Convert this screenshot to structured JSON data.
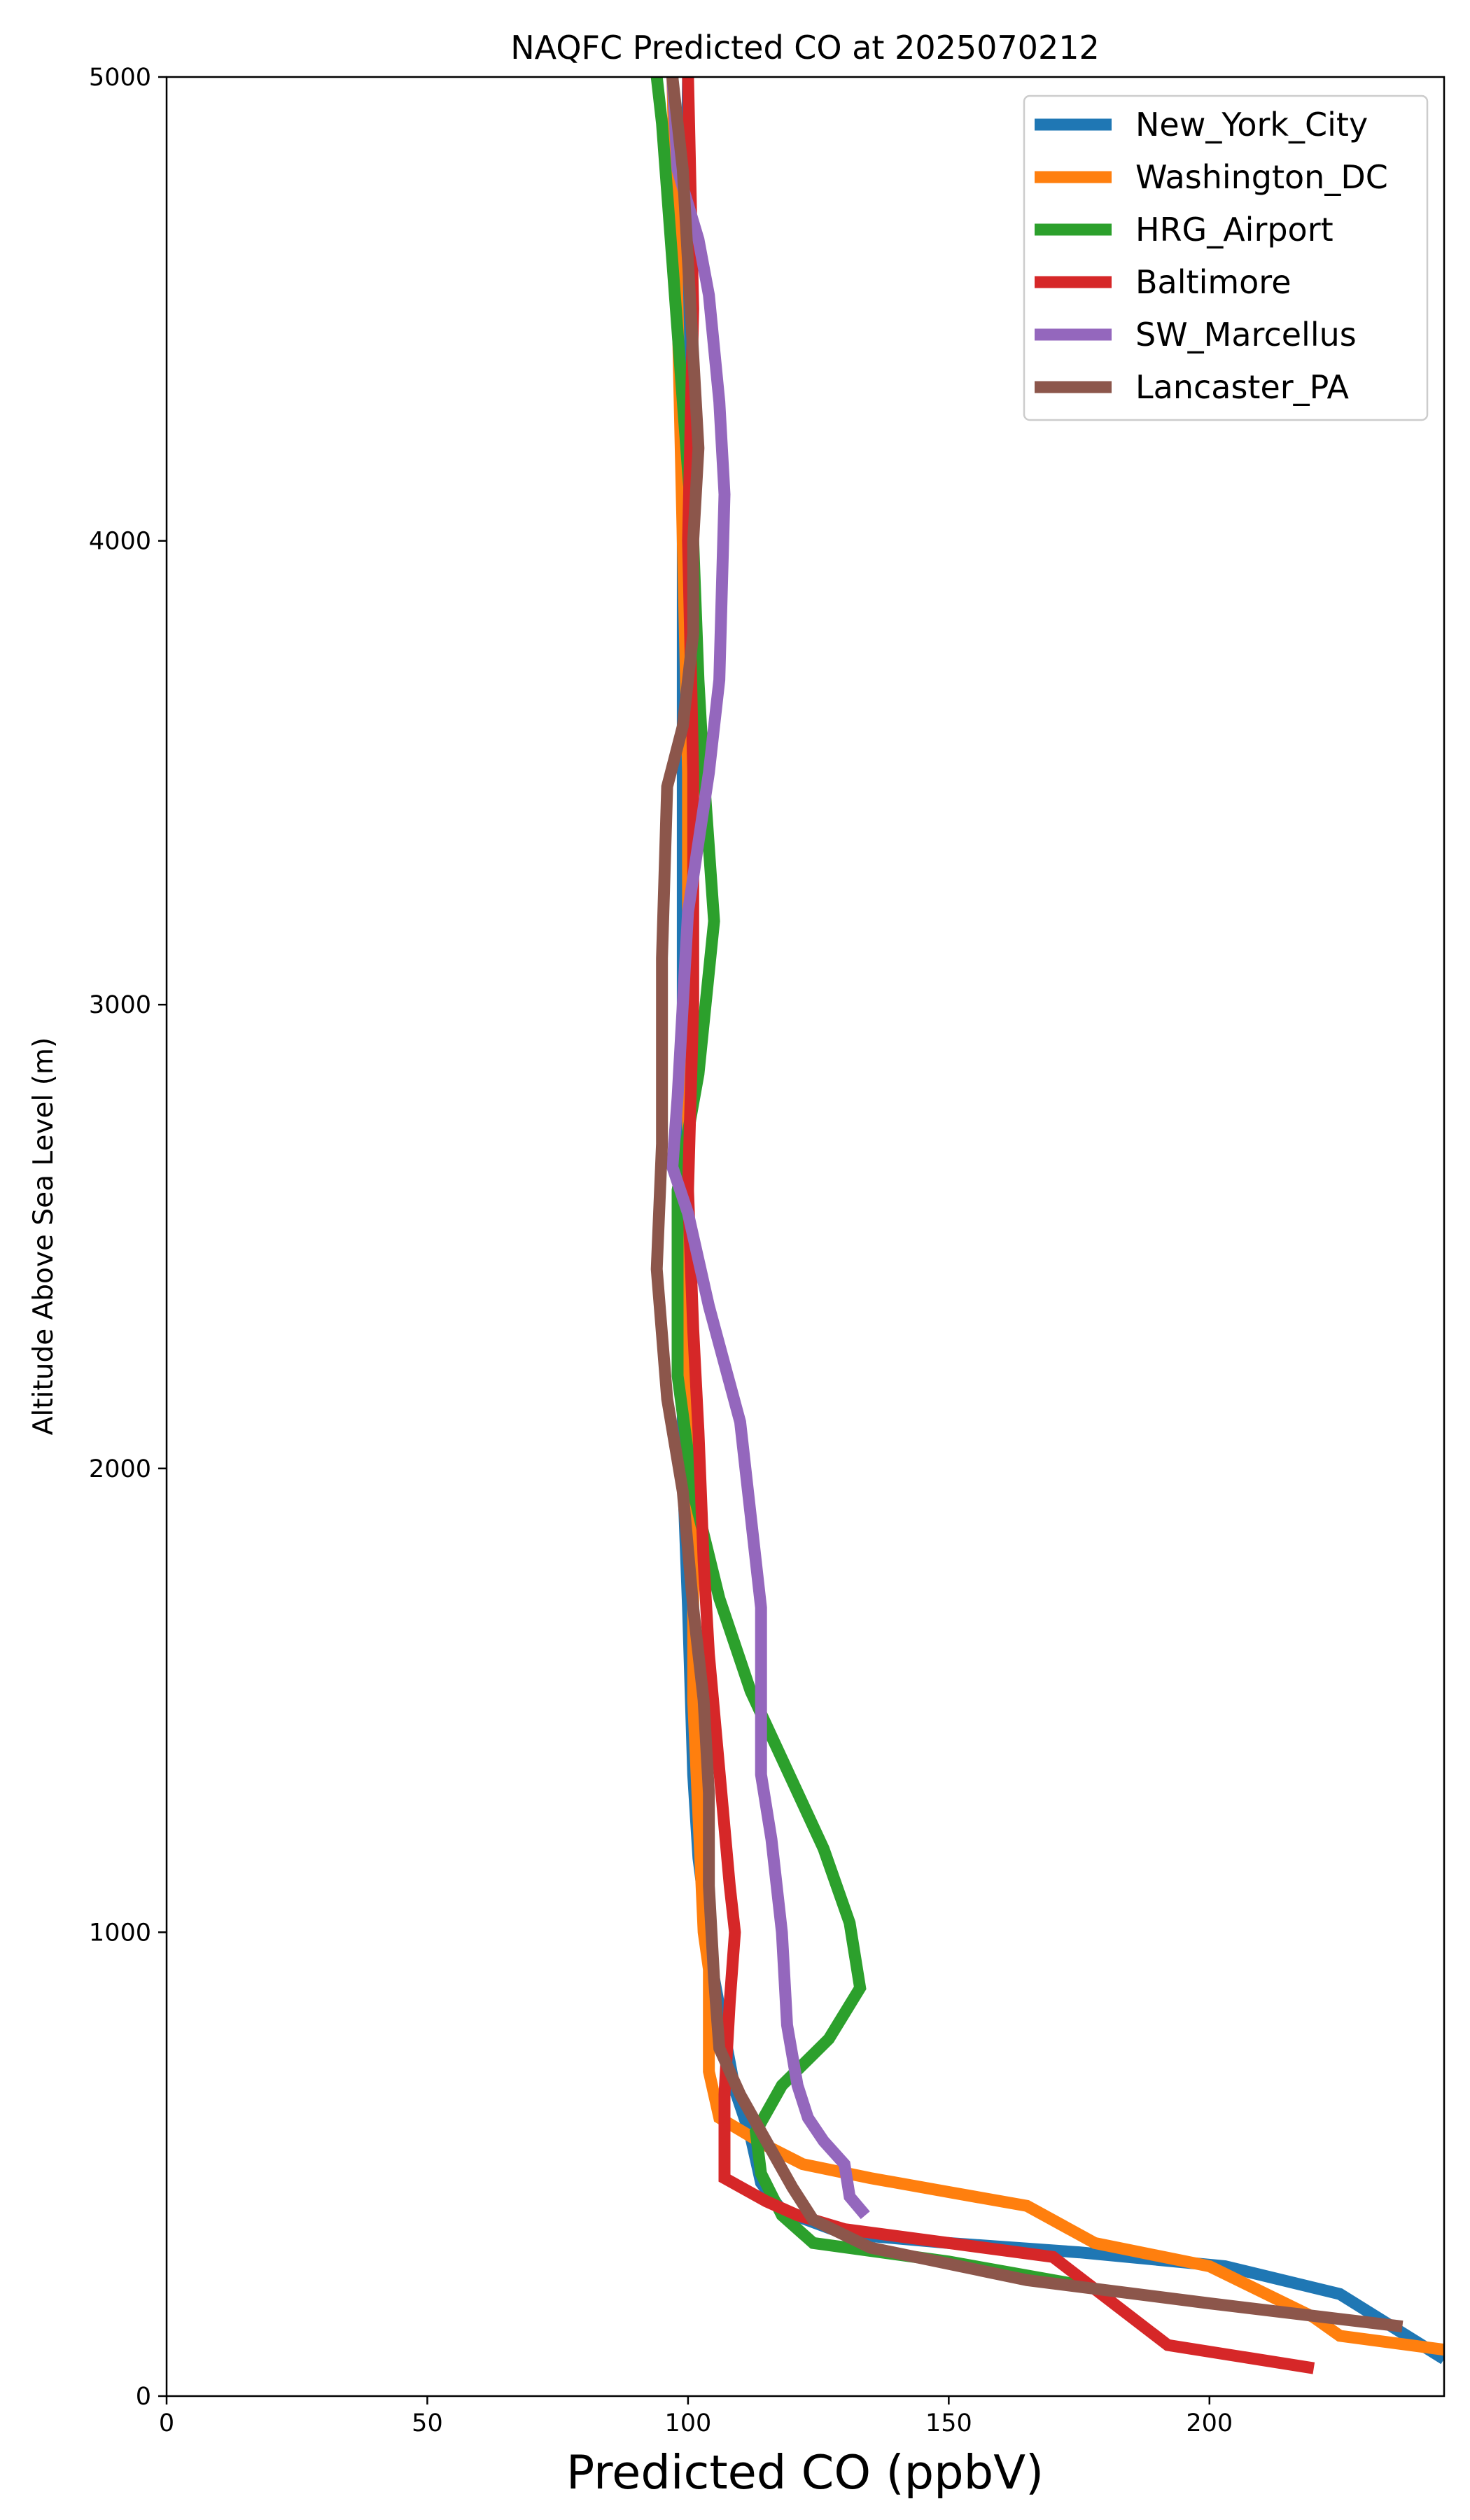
{
  "chart_data": {
    "type": "line",
    "title": "NAQFC Predicted CO at 2025070212",
    "xlabel": "Predicted CO (ppbV)",
    "ylabel": "Altitude Above Sea Level (m)",
    "xlim": [
      0,
      245
    ],
    "ylim": [
      0,
      5000
    ],
    "xticks": [
      0,
      50,
      100,
      150,
      200
    ],
    "yticks": [
      0,
      1000,
      2000,
      3000,
      4000,
      5000
    ],
    "grid": false,
    "legend_position": "top-right",
    "series": [
      {
        "name": "New_York_City",
        "color": "#1f77b4",
        "points": [
          [
            245,
            80
          ],
          [
            225,
            220
          ],
          [
            203,
            280
          ],
          [
            175,
            310
          ],
          [
            150,
            330
          ],
          [
            130,
            350
          ],
          [
            118,
            400
          ],
          [
            114,
            460
          ],
          [
            112,
            560
          ],
          [
            109,
            660
          ],
          [
            105,
            900
          ],
          [
            102,
            1160
          ],
          [
            101,
            1340
          ],
          [
            100,
            1700
          ],
          [
            99,
            2000
          ],
          [
            99,
            2500
          ],
          [
            99,
            3000
          ],
          [
            99,
            3500
          ],
          [
            99,
            4200
          ],
          [
            100,
            5000
          ]
        ]
      },
      {
        "name": "Washington_DC",
        "color": "#ff7f0e",
        "points": [
          [
            245,
            100
          ],
          [
            225,
            130
          ],
          [
            220,
            170
          ],
          [
            200,
            280
          ],
          [
            178,
            330
          ],
          [
            165,
            410
          ],
          [
            150,
            440
          ],
          [
            135,
            470
          ],
          [
            122,
            500
          ],
          [
            115,
            540
          ],
          [
            106,
            600
          ],
          [
            104,
            700
          ],
          [
            104,
            920
          ],
          [
            103,
            1000
          ],
          [
            102,
            1250
          ],
          [
            101,
            1500
          ],
          [
            101,
            1800
          ],
          [
            100,
            2000
          ],
          [
            100,
            2500
          ],
          [
            100,
            3000
          ],
          [
            100,
            3500
          ],
          [
            99,
            4000
          ],
          [
            98,
            4500
          ],
          [
            97,
            5000
          ]
        ]
      },
      {
        "name": "HRG_Airport",
        "color": "#2ca02c",
        "points": [
          [
            175,
            240
          ],
          [
            150,
            290
          ],
          [
            124,
            330
          ],
          [
            118,
            390
          ],
          [
            114,
            480
          ],
          [
            113,
            570
          ],
          [
            118,
            670
          ],
          [
            127,
            770
          ],
          [
            133,
            880
          ],
          [
            131,
            1020
          ],
          [
            126,
            1180
          ],
          [
            112,
            1520
          ],
          [
            106,
            1720
          ],
          [
            101,
            1950
          ],
          [
            98,
            2200
          ],
          [
            98,
            2600
          ],
          [
            102,
            2850
          ],
          [
            105,
            3180
          ],
          [
            103,
            3500
          ],
          [
            102,
            3700
          ],
          [
            101,
            4000
          ],
          [
            99,
            4300
          ],
          [
            97,
            4600
          ],
          [
            95,
            4900
          ],
          [
            94,
            5000
          ]
        ]
      },
      {
        "name": "Baltimore",
        "color": "#d62728",
        "points": [
          [
            220,
            60
          ],
          [
            192,
            110
          ],
          [
            170,
            300
          ],
          [
            150,
            330
          ],
          [
            130,
            360
          ],
          [
            121,
            390
          ],
          [
            115,
            420
          ],
          [
            107,
            470
          ],
          [
            107,
            650
          ],
          [
            108,
            850
          ],
          [
            109,
            1000
          ],
          [
            108,
            1100
          ],
          [
            106,
            1350
          ],
          [
            104,
            1600
          ],
          [
            103,
            1800
          ],
          [
            102,
            2080
          ],
          [
            101,
            2300
          ],
          [
            100,
            2600
          ],
          [
            101,
            3000
          ],
          [
            101,
            3500
          ],
          [
            100,
            4000
          ],
          [
            101,
            4500
          ],
          [
            100,
            5000
          ]
        ]
      },
      {
        "name": "SW_Marcellus",
        "color": "#9467bd",
        "points": [
          [
            134,
            390
          ],
          [
            131,
            430
          ],
          [
            130,
            500
          ],
          [
            126,
            550
          ],
          [
            123,
            600
          ],
          [
            121,
            670
          ],
          [
            119,
            800
          ],
          [
            118,
            1000
          ],
          [
            116,
            1200
          ],
          [
            114,
            1340
          ],
          [
            114,
            1500
          ],
          [
            114,
            1700
          ],
          [
            112,
            1900
          ],
          [
            110,
            2100
          ],
          [
            104,
            2350
          ],
          [
            100,
            2550
          ],
          [
            97,
            2650
          ],
          [
            98,
            2800
          ],
          [
            99,
            3000
          ],
          [
            100,
            3200
          ],
          [
            102,
            3350
          ],
          [
            104,
            3500
          ],
          [
            106,
            3700
          ],
          [
            107,
            4100
          ],
          [
            106,
            4300
          ],
          [
            104,
            4530
          ],
          [
            102,
            4650
          ],
          [
            98,
            4800
          ],
          [
            97,
            5000
          ]
        ]
      },
      {
        "name": "Lancaster_PA",
        "color": "#8c564b",
        "points": [
          [
            237,
            150
          ],
          [
            200,
            200
          ],
          [
            165,
            250
          ],
          [
            135,
            320
          ],
          [
            124,
            380
          ],
          [
            120,
            450
          ],
          [
            115,
            550
          ],
          [
            110,
            650
          ],
          [
            106,
            750
          ],
          [
            105,
            900
          ],
          [
            104,
            1100
          ],
          [
            104,
            1300
          ],
          [
            103,
            1500
          ],
          [
            101,
            1700
          ],
          [
            99,
            1950
          ],
          [
            96,
            2150
          ],
          [
            94,
            2430
          ],
          [
            95,
            2700
          ],
          [
            95,
            3100
          ],
          [
            96,
            3470
          ],
          [
            99,
            3600
          ],
          [
            101,
            3800
          ],
          [
            101,
            4000
          ],
          [
            102,
            4200
          ],
          [
            101,
            4400
          ],
          [
            100,
            4600
          ],
          [
            99,
            4800
          ],
          [
            97,
            5000
          ]
        ]
      }
    ]
  }
}
